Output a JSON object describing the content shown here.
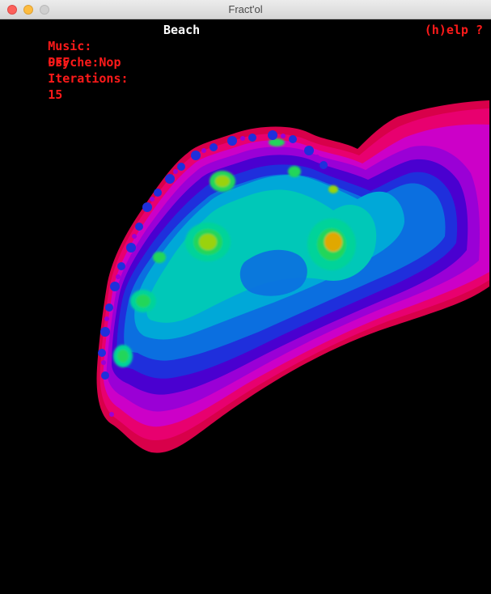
{
  "window": {
    "title": "Fract'ol"
  },
  "hud": {
    "music_label": "Music:",
    "music_value": "OFF",
    "psyche_label": "Psyche:",
    "psyche_value": "Nop",
    "iterations_label": "Iterations:",
    "iterations_value": "15",
    "fractal_name": "Beach",
    "help": "(h)elp ?"
  },
  "colors": {
    "hud_text": "#ff1a1a",
    "fractal_name": "#ffffff",
    "background": "#000000",
    "bands": [
      "#d8004a",
      "#e8006f",
      "#cc00c8",
      "#9a00d6",
      "#4a00d0",
      "#1f2fdc",
      "#0b6fe0",
      "#00a8d8",
      "#00c8b8",
      "#00d39a",
      "#22d65a",
      "#9ad20a",
      "#e0a800"
    ]
  }
}
